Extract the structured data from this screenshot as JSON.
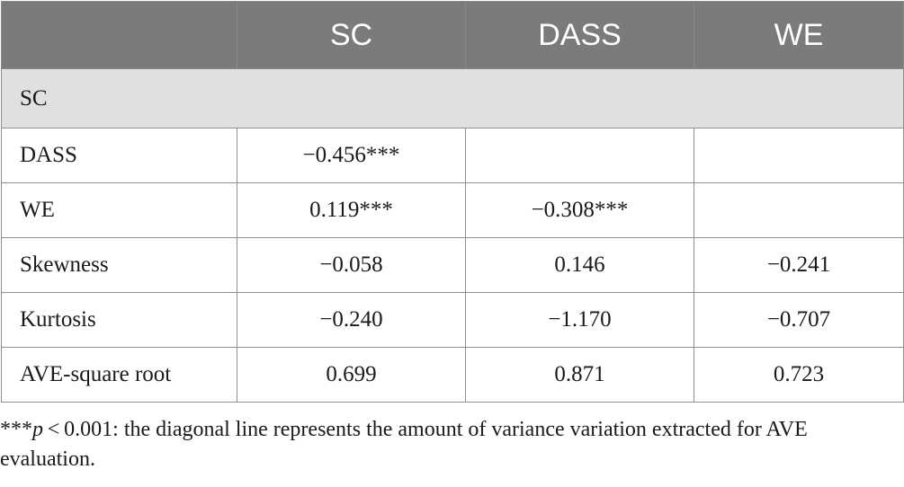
{
  "table": {
    "headers": [
      "",
      "SC",
      "DASS",
      "WE"
    ],
    "section_label": "SC",
    "rows": [
      {
        "label": "DASS",
        "cells": [
          "−0.456***",
          "",
          ""
        ]
      },
      {
        "label": "WE",
        "cells": [
          "0.119***",
          "−0.308***",
          ""
        ]
      },
      {
        "label": "Skewness",
        "cells": [
          "−0.058",
          "0.146",
          "−0.241"
        ]
      },
      {
        "label": "Kurtosis",
        "cells": [
          "−0.240",
          "−1.170",
          "−0.707"
        ]
      },
      {
        "label": "AVE-square root",
        "cells": [
          "0.699",
          "0.871",
          "0.723"
        ]
      }
    ]
  },
  "footnote": {
    "stars": "***",
    "p_symbol": "p",
    "threshold": " < 0.001",
    "line1_rest": ": the diagonal line represents the amount of variance variation extracted for AVE",
    "line2": "evaluation."
  }
}
